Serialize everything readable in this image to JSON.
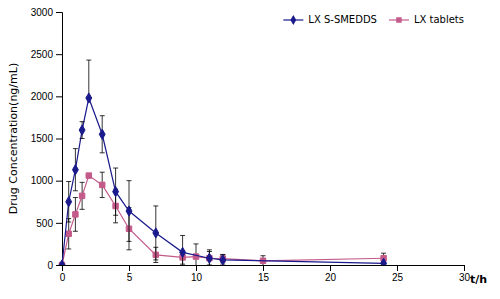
{
  "chart_data": {
    "type": "line",
    "xlabel": "t/h",
    "ylabel": "Drug Concentration(ng/mL)",
    "xlim": [
      0,
      30
    ],
    "ylim": [
      0,
      3000
    ],
    "xticks": [
      0,
      5,
      10,
      15,
      20,
      25,
      30
    ],
    "yticks": [
      0,
      500,
      1000,
      1500,
      2000,
      2500,
      3000
    ],
    "grid": false,
    "legend": "upper right",
    "series": [
      {
        "name": "LX S-SMEDDS",
        "color": "#1a1a8c",
        "marker": "diamond",
        "line_style": "solid",
        "x": [
          0,
          0.5,
          1,
          1.5,
          2,
          3,
          4,
          5,
          7,
          9,
          11,
          12,
          24
        ],
        "values": [
          0,
          750,
          1130,
          1600,
          1980,
          1550,
          870,
          640,
          380,
          150,
          80,
          60,
          20
        ],
        "error_upper": [
          0,
          240,
          250,
          100,
          450,
          220,
          280,
          360,
          320,
          200,
          80,
          60,
          20
        ],
        "error_lower": [
          0,
          240,
          250,
          100,
          0,
          220,
          280,
          360,
          320,
          200,
          80,
          60,
          20
        ]
      },
      {
        "name": "LX tablets",
        "color": "#c45a8a",
        "marker": "square",
        "line_style": "solid",
        "x": [
          0,
          0.5,
          1,
          1.5,
          2,
          3,
          4,
          5,
          7,
          9,
          10,
          11,
          12,
          15,
          24
        ],
        "values": [
          0,
          370,
          600,
          820,
          1060,
          950,
          700,
          430,
          120,
          90,
          100,
          80,
          75,
          50,
          80
        ],
        "error_upper": [
          0,
          180,
          200,
          160,
          0,
          150,
          200,
          250,
          90,
          80,
          150,
          100,
          50,
          60,
          60
        ],
        "error_lower": [
          0,
          180,
          200,
          160,
          0,
          150,
          200,
          250,
          90,
          80,
          150,
          100,
          50,
          60,
          60
        ]
      }
    ]
  }
}
